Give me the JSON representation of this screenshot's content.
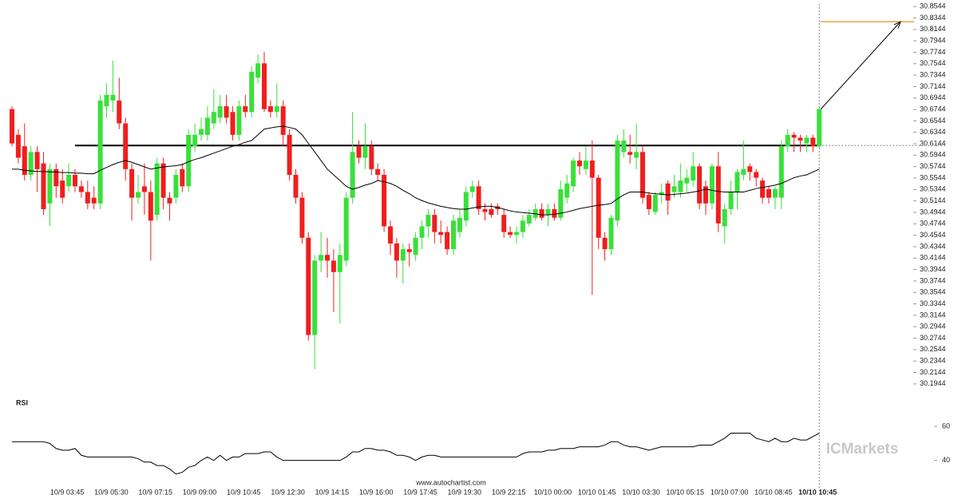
{
  "chart_data": {
    "type": "candlestick",
    "up_color": "#39e03a",
    "down_color": "#f01e1e",
    "ylim": [
      30.1844,
      30.8644
    ],
    "yticks": [
      30.1944,
      30.2144,
      30.2344,
      30.2544,
      30.2744,
      30.2944,
      30.3144,
      30.3344,
      30.3544,
      30.3744,
      30.3944,
      30.4144,
      30.4344,
      30.4544,
      30.4744,
      30.4944,
      30.5144,
      30.5344,
      30.5544,
      30.5744,
      30.5944,
      30.6144,
      30.6344,
      30.6544,
      30.6744,
      30.6944,
      30.7144,
      30.7344,
      30.7544,
      30.7744,
      30.7944,
      30.8144,
      30.8344,
      30.8544
    ],
    "level": 30.6114,
    "target": 30.8279,
    "categories": [
      null,
      null,
      null,
      null,
      null,
      null,
      null,
      null,
      null,
      "10/9 03:45",
      null,
      null,
      null,
      null,
      null,
      null,
      "10/9 05:30",
      null,
      null,
      null,
      null,
      null,
      null,
      "10/9 07:15",
      null,
      null,
      null,
      null,
      null,
      null,
      "10/9 09:00",
      null,
      null,
      null,
      null,
      null,
      null,
      "10/9 10:45",
      null,
      null,
      null,
      null,
      null,
      null,
      "10/9 12:30",
      null,
      null,
      null,
      null,
      null,
      null,
      "10/9 14:15",
      null,
      null,
      null,
      null,
      null,
      null,
      "10/9 16:00",
      null,
      null,
      null,
      null,
      null,
      null,
      "10/9 17:45",
      null,
      null,
      null,
      null,
      null,
      null,
      "10/9 19:30",
      null,
      null,
      null,
      null,
      null,
      null,
      "10/9 22:15",
      null,
      null,
      null,
      null,
      null,
      null,
      "10/10 00:00",
      null,
      null,
      null,
      null,
      null,
      null,
      "10/10 01:45",
      null,
      null,
      null,
      null,
      null,
      null,
      "10/10 03:30",
      null,
      null,
      null,
      null,
      null,
      null,
      "10/10 05:15",
      null,
      null,
      null,
      null,
      null,
      null,
      "10/10 07:00",
      null,
      null,
      null,
      null,
      null,
      null,
      "10/10 08:45",
      null,
      null,
      null,
      null,
      null,
      null,
      "10/10 10:45"
    ],
    "ohlc": [
      [
        30.675,
        30.68,
        30.61,
        30.615
      ],
      [
        30.63,
        30.64,
        30.58,
        30.59
      ],
      [
        30.61,
        30.65,
        30.55,
        30.56
      ],
      [
        30.56,
        30.61,
        30.55,
        30.6
      ],
      [
        30.6,
        30.61,
        30.53,
        30.57
      ],
      [
        30.58,
        30.6,
        30.49,
        30.5
      ],
      [
        30.51,
        30.58,
        30.47,
        30.57
      ],
      [
        30.57,
        30.58,
        30.52,
        30.54
      ],
      [
        30.55,
        30.57,
        30.51,
        30.52
      ],
      [
        30.54,
        30.58,
        30.53,
        30.56
      ],
      [
        30.56,
        30.57,
        30.53,
        30.54
      ],
      [
        30.54,
        30.55,
        30.52,
        30.53
      ],
      [
        30.53,
        30.55,
        30.5,
        30.51
      ],
      [
        30.52,
        30.54,
        30.5,
        30.51
      ],
      [
        30.51,
        30.7,
        30.5,
        30.69
      ],
      [
        30.68,
        30.72,
        30.66,
        30.7
      ],
      [
        30.69,
        30.76,
        30.67,
        30.7
      ],
      [
        30.69,
        30.73,
        30.64,
        30.65
      ],
      [
        30.65,
        30.66,
        30.55,
        30.57
      ],
      [
        30.57,
        30.58,
        30.48,
        30.52
      ],
      [
        30.52,
        30.56,
        30.51,
        30.53
      ],
      [
        30.54,
        30.58,
        30.49,
        30.53
      ],
      [
        30.53,
        30.55,
        30.41,
        30.48
      ],
      [
        30.49,
        30.59,
        30.48,
        30.58
      ],
      [
        30.58,
        30.59,
        30.5,
        30.52
      ],
      [
        30.52,
        30.53,
        30.48,
        30.51
      ],
      [
        30.52,
        30.57,
        30.51,
        30.56
      ],
      [
        30.57,
        30.58,
        30.53,
        30.54
      ],
      [
        30.54,
        30.64,
        30.53,
        30.63
      ],
      [
        30.61,
        30.65,
        30.6,
        30.63
      ],
      [
        30.63,
        30.66,
        30.62,
        30.64
      ],
      [
        30.63,
        30.68,
        30.62,
        30.66
      ],
      [
        30.65,
        30.71,
        30.64,
        30.67
      ],
      [
        30.66,
        30.7,
        30.65,
        30.68
      ],
      [
        30.68,
        30.7,
        30.65,
        30.66
      ],
      [
        30.67,
        30.68,
        30.62,
        30.63
      ],
      [
        30.63,
        30.69,
        30.62,
        30.68
      ],
      [
        30.68,
        30.7,
        30.66,
        30.67
      ],
      [
        30.67,
        30.75,
        30.66,
        30.74
      ],
      [
        30.73,
        30.77,
        30.72,
        30.755
      ],
      [
        30.755,
        30.775,
        30.67,
        30.675
      ],
      [
        30.68,
        30.69,
        30.66,
        30.67
      ],
      [
        30.67,
        30.72,
        30.66,
        30.68
      ],
      [
        30.68,
        30.69,
        30.61,
        30.63
      ],
      [
        30.63,
        30.64,
        30.55,
        30.56
      ],
      [
        30.56,
        30.57,
        30.51,
        30.52
      ],
      [
        30.52,
        30.53,
        30.44,
        30.45
      ],
      [
        30.45,
        30.46,
        30.27,
        30.28
      ],
      [
        30.28,
        30.42,
        30.22,
        30.41
      ],
      [
        30.41,
        30.46,
        30.39,
        30.42
      ],
      [
        30.42,
        30.45,
        30.38,
        30.41
      ],
      [
        30.41,
        30.43,
        30.32,
        30.39
      ],
      [
        30.39,
        30.44,
        30.3,
        30.42
      ],
      [
        30.41,
        30.53,
        30.4,
        30.52
      ],
      [
        30.52,
        30.67,
        30.51,
        30.6
      ],
      [
        30.61,
        30.62,
        30.58,
        30.59
      ],
      [
        30.59,
        30.65,
        30.57,
        30.61
      ],
      [
        30.61,
        30.62,
        30.56,
        30.57
      ],
      [
        30.57,
        30.58,
        30.55,
        30.56
      ],
      [
        30.56,
        30.57,
        30.46,
        30.47
      ],
      [
        30.47,
        30.48,
        30.42,
        30.44
      ],
      [
        30.44,
        30.45,
        30.38,
        30.41
      ],
      [
        30.41,
        30.44,
        30.37,
        30.43
      ],
      [
        30.43,
        30.44,
        30.4,
        30.425
      ],
      [
        30.42,
        30.46,
        30.41,
        30.45
      ],
      [
        30.45,
        30.48,
        30.43,
        30.47
      ],
      [
        30.47,
        30.5,
        30.45,
        30.49
      ],
      [
        30.49,
        30.5,
        30.44,
        30.46
      ],
      [
        30.46,
        30.48,
        30.44,
        30.455
      ],
      [
        30.46,
        30.47,
        30.42,
        30.43
      ],
      [
        30.43,
        30.49,
        30.42,
        30.48
      ],
      [
        30.46,
        30.5,
        30.45,
        30.485
      ],
      [
        30.48,
        30.54,
        30.47,
        30.53
      ],
      [
        30.53,
        30.55,
        30.52,
        30.54
      ],
      [
        30.54,
        30.55,
        30.49,
        30.5
      ],
      [
        30.5,
        30.51,
        30.48,
        30.495
      ],
      [
        30.5,
        30.51,
        30.485,
        30.49
      ],
      [
        30.505,
        30.51,
        30.49,
        30.5
      ],
      [
        30.49,
        30.5,
        30.45,
        30.46
      ],
      [
        30.46,
        30.47,
        30.45,
        30.455
      ],
      [
        30.455,
        30.47,
        30.44,
        30.46
      ],
      [
        30.46,
        30.49,
        30.45,
        30.48
      ],
      [
        30.475,
        30.5,
        30.47,
        30.49
      ],
      [
        30.485,
        30.51,
        30.48,
        30.5
      ],
      [
        30.5,
        30.51,
        30.48,
        30.485
      ],
      [
        30.49,
        30.51,
        30.47,
        30.5
      ],
      [
        30.5,
        30.51,
        30.48,
        30.485
      ],
      [
        30.485,
        30.55,
        30.48,
        30.535
      ],
      [
        30.52,
        30.56,
        30.51,
        30.545
      ],
      [
        30.54,
        30.59,
        30.53,
        30.585
      ],
      [
        30.585,
        30.6,
        30.56,
        30.575
      ],
      [
        30.57,
        30.61,
        30.56,
        30.585
      ],
      [
        30.585,
        30.62,
        30.35,
        30.555
      ],
      [
        30.555,
        30.56,
        30.43,
        30.45
      ],
      [
        30.45,
        30.46,
        30.41,
        30.43
      ],
      [
        30.43,
        30.49,
        30.42,
        30.485
      ],
      [
        30.48,
        30.63,
        30.47,
        30.62
      ],
      [
        30.6,
        30.64,
        30.59,
        30.62
      ],
      [
        30.6,
        30.63,
        30.58,
        30.595
      ],
      [
        30.59,
        30.65,
        30.57,
        30.6
      ],
      [
        30.6,
        30.61,
        30.51,
        30.52
      ],
      [
        30.525,
        30.53,
        30.49,
        30.5
      ],
      [
        30.495,
        30.53,
        30.49,
        30.525
      ],
      [
        30.525,
        30.545,
        30.51,
        30.53
      ],
      [
        30.545,
        30.55,
        30.49,
        30.515
      ],
      [
        30.53,
        30.56,
        30.52,
        30.54
      ],
      [
        30.53,
        30.58,
        30.52,
        30.55
      ],
      [
        30.545,
        30.57,
        30.53,
        30.555
      ],
      [
        30.55,
        30.6,
        30.54,
        30.575
      ],
      [
        30.575,
        30.58,
        30.5,
        30.51
      ],
      [
        30.54,
        30.55,
        30.49,
        30.51
      ],
      [
        30.51,
        30.58,
        30.5,
        30.575
      ],
      [
        30.575,
        30.6,
        30.46,
        30.475
      ],
      [
        30.47,
        30.51,
        30.44,
        30.5
      ],
      [
        30.5,
        30.55,
        30.49,
        30.53
      ],
      [
        30.53,
        30.57,
        30.5,
        30.565
      ],
      [
        30.56,
        30.62,
        30.55,
        30.57
      ],
      [
        30.575,
        30.58,
        30.55,
        30.565
      ],
      [
        30.565,
        30.57,
        30.54,
        30.555
      ],
      [
        30.55,
        30.555,
        30.51,
        30.52
      ],
      [
        30.535,
        30.54,
        30.51,
        30.52
      ],
      [
        30.52,
        30.54,
        30.5,
        30.535
      ],
      [
        30.52,
        30.62,
        30.5,
        30.61
      ],
      [
        30.61,
        30.64,
        30.6,
        30.63
      ],
      [
        30.63,
        30.635,
        30.6,
        30.625
      ],
      [
        30.625,
        30.63,
        30.6,
        30.62
      ],
      [
        30.615,
        30.63,
        30.6,
        30.625
      ],
      [
        30.625,
        30.63,
        30.6,
        30.61
      ],
      [
        30.61,
        30.68,
        30.605,
        30.675
      ]
    ],
    "ma": [
      30.57,
      30.57,
      30.568,
      30.567,
      30.566,
      30.566,
      30.565,
      30.565,
      30.564,
      30.564,
      30.563,
      30.563,
      30.562,
      30.562,
      30.568,
      30.573,
      30.578,
      30.582,
      30.585,
      30.582,
      30.578,
      30.574,
      30.57,
      30.572,
      30.574,
      30.575,
      30.576,
      30.578,
      30.583,
      30.587,
      30.59,
      30.594,
      30.598,
      30.602,
      30.606,
      30.61,
      30.613,
      30.617,
      30.62,
      30.63,
      30.64,
      30.642,
      30.644,
      30.645,
      30.643,
      30.64,
      30.63,
      30.615,
      30.6,
      30.585,
      30.57,
      30.56,
      30.55,
      30.54,
      30.535,
      30.538,
      30.542,
      30.545,
      30.55,
      30.548,
      30.545,
      30.54,
      30.533,
      30.527,
      30.52,
      30.515,
      30.511,
      30.508,
      30.505,
      30.503,
      30.501,
      30.5,
      30.5,
      30.502,
      30.504,
      30.505,
      30.505,
      30.503,
      30.5,
      30.497,
      30.495,
      30.494,
      30.493,
      30.492,
      30.49,
      30.49,
      30.491,
      30.493,
      30.495,
      30.498,
      30.501,
      30.503,
      30.505,
      30.507,
      30.508,
      30.51,
      30.518,
      30.525,
      30.53,
      30.53,
      30.53,
      30.528,
      30.527,
      30.526,
      30.525,
      30.526,
      30.527,
      30.528,
      30.53,
      30.532,
      30.535,
      30.533,
      30.531,
      30.53,
      30.53,
      30.53,
      30.53,
      30.533,
      30.536,
      30.538,
      30.54,
      30.542,
      30.545,
      30.55,
      30.555,
      30.558,
      30.56,
      30.565,
      30.57
    ],
    "rsi_label": "RSI",
    "rsi_ylim": [
      30,
      60
    ],
    "rsi_yticks": [
      60,
      40
    ],
    "rsi": [
      51,
      51,
      51,
      51,
      51,
      51,
      50,
      47,
      46,
      46,
      47,
      43,
      42,
      42,
      42,
      42,
      42,
      42,
      42,
      42,
      41,
      39,
      39,
      37,
      37,
      35,
      32,
      33,
      36,
      37,
      40,
      42,
      40,
      43,
      40,
      42,
      42,
      44,
      44,
      44,
      45,
      45,
      42,
      40,
      40,
      40,
      40,
      40,
      40,
      40,
      40,
      40,
      40,
      42,
      45,
      45,
      47,
      47,
      46,
      46,
      45,
      43,
      43,
      42,
      40,
      42,
      43,
      43,
      42,
      42,
      42,
      42,
      42,
      42,
      42,
      42,
      42,
      42,
      42,
      42,
      42,
      44,
      45,
      45,
      45,
      46,
      46,
      47,
      47,
      47,
      48,
      48,
      48,
      48,
      49,
      51,
      51,
      49,
      48,
      48,
      47,
      46,
      47,
      48,
      48,
      48,
      48,
      48,
      48,
      49,
      49,
      49,
      51,
      53,
      56,
      56,
      56,
      56,
      53,
      52,
      51,
      53,
      51,
      51,
      53,
      52,
      52,
      54,
      56
    ],
    "source": "www.autochartist.com",
    "logo": "ICMarkets"
  }
}
